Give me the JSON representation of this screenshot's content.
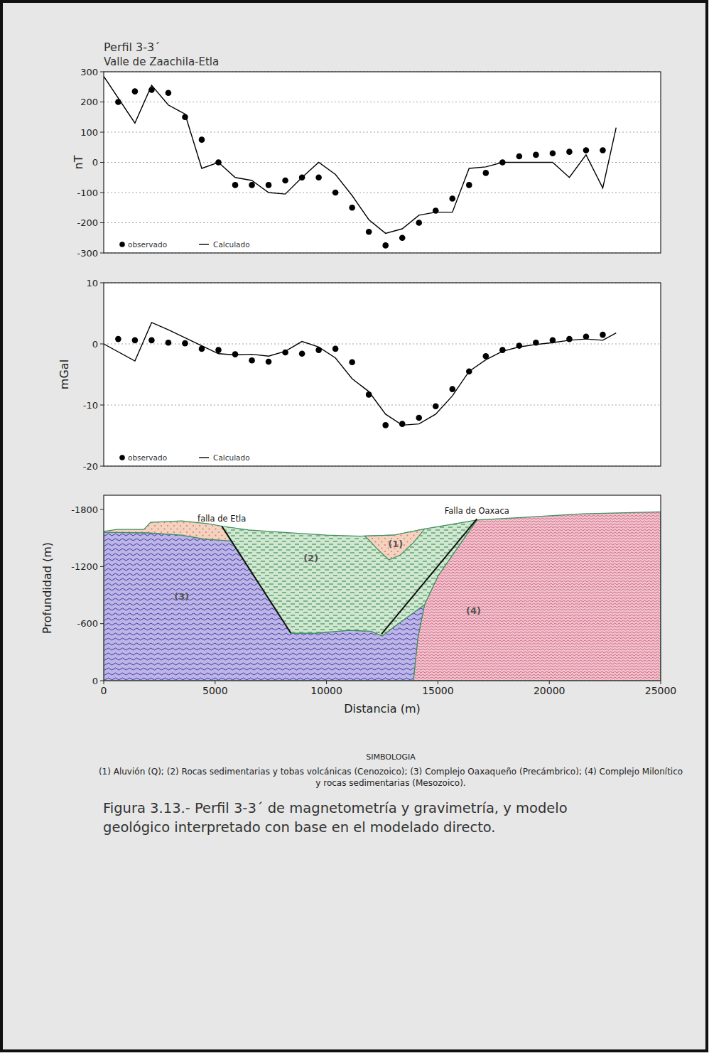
{
  "chart_data": [
    {
      "type": "line",
      "title": "Perfil 3-3´",
      "subtitle": "Valle de Zaachila-Etla",
      "y_label": "nT",
      "xlim": [
        0,
        25000
      ],
      "ylim": [
        -300,
        300
      ],
      "yticks": [
        -300,
        -200,
        -100,
        0,
        100,
        200,
        300
      ],
      "grid": true,
      "tick_labels": "y",
      "legend": "lower left",
      "series": [
        {
          "name": "observado",
          "type": "scatter",
          "marker": "circle",
          "color": "#000000",
          "x": [
            650,
            1400,
            2150,
            2900,
            3650,
            4400,
            5150,
            5900,
            6650,
            7400,
            8150,
            8900,
            9650,
            10400,
            11150,
            11900,
            12650,
            13400,
            14150,
            14900,
            15650,
            16400,
            17150,
            17900,
            18650,
            19400,
            20150,
            20900,
            21650,
            22400
          ],
          "values": [
            200,
            235,
            240,
            230,
            150,
            75,
            0,
            -75,
            -75,
            -75,
            -60,
            -50,
            -50,
            -100,
            -150,
            -230,
            -275,
            -250,
            -200,
            -160,
            -120,
            -75,
            -35,
            0,
            20,
            25,
            30,
            35,
            40,
            40
          ]
        },
        {
          "name": "Calculado",
          "type": "line",
          "line_style": "solid",
          "color": "#000000",
          "x": [
            0,
            1400,
            2150,
            2900,
            3650,
            4400,
            5150,
            5900,
            6650,
            7400,
            8150,
            8900,
            9650,
            10400,
            11150,
            11900,
            12650,
            13400,
            14150,
            14900,
            15650,
            16400,
            17150,
            17900,
            18650,
            19400,
            20150,
            20900,
            21650,
            22400,
            23000
          ],
          "values": [
            285,
            130,
            255,
            190,
            160,
            -20,
            0,
            -50,
            -60,
            -100,
            -105,
            -50,
            0,
            -40,
            -110,
            -190,
            -235,
            -220,
            -175,
            -165,
            -165,
            -20,
            -15,
            0,
            0,
            0,
            0,
            -50,
            25,
            -85,
            115
          ]
        }
      ]
    },
    {
      "type": "line",
      "y_label": "mGal",
      "xlim": [
        0,
        25000
      ],
      "ylim": [
        -20,
        10
      ],
      "yticks": [
        -20,
        -10,
        0,
        10
      ],
      "grid": true,
      "tick_labels": "y",
      "legend": "lower left",
      "series": [
        {
          "name": "observado",
          "type": "scatter",
          "marker": "circle",
          "color": "#000000",
          "x": [
            650,
            1400,
            2150,
            2900,
            3650,
            4400,
            5150,
            5900,
            6650,
            7400,
            8150,
            8900,
            9650,
            10400,
            11150,
            11900,
            12650,
            13400,
            14150,
            14900,
            15650,
            16400,
            17150,
            17900,
            18650,
            19400,
            20150,
            20900,
            21650,
            22400
          ],
          "values": [
            0.8,
            0.6,
            0.6,
            0.2,
            0.1,
            -0.8,
            -1.0,
            -1.7,
            -2.7,
            -2.9,
            -1.4,
            -1.6,
            -1.0,
            -0.8,
            -3.0,
            -8.3,
            -13.3,
            -13.1,
            -12.1,
            -10.2,
            -7.4,
            -4.5,
            -2.0,
            -1.0,
            -0.3,
            0.2,
            0.6,
            0.8,
            1.2,
            1.5
          ]
        },
        {
          "name": "Calculado",
          "type": "line",
          "line_style": "solid",
          "color": "#000000",
          "x": [
            0,
            1400,
            2150,
            2900,
            3650,
            4400,
            5150,
            5900,
            6650,
            7400,
            8150,
            8900,
            9650,
            10400,
            11150,
            11900,
            12650,
            13400,
            14150,
            14900,
            15650,
            16400,
            17150,
            17900,
            18650,
            19400,
            20150,
            20900,
            21650,
            22400,
            23000
          ],
          "values": [
            0,
            -2.8,
            3.5,
            2.3,
            1.0,
            -0.3,
            -1.6,
            -1.8,
            -1.7,
            -2.0,
            -1.2,
            0.4,
            -0.5,
            -2.3,
            -5.7,
            -7.8,
            -11.5,
            -13.3,
            -13.1,
            -11.5,
            -8.5,
            -4.5,
            -2.6,
            -1.2,
            -0.5,
            -0.1,
            0.2,
            0.6,
            0.8,
            0.6,
            1.8
          ]
        }
      ]
    },
    {
      "type": "section",
      "x_label": "Distancia (m)",
      "y_label": "Profundidad (m)",
      "xlim": [
        0,
        25000
      ],
      "ylim": [
        0,
        -1950
      ],
      "xticks": [
        0,
        5000,
        10000,
        15000,
        20000,
        25000
      ],
      "yticks": [
        0,
        -600,
        -1200,
        -1800
      ],
      "grid": false,
      "tick_labels": true,
      "units": [
        {
          "label": "(1)",
          "description": "Aluvión (Q);",
          "color": "#f3d2c0",
          "label_at": [
            13100,
            -1440
          ],
          "polygons": [
            [
              [
                0,
                -1570
              ],
              [
                600,
                -1590
              ],
              [
                1800,
                -1590
              ],
              [
                2100,
                -1665
              ],
              [
                3500,
                -1680
              ],
              [
                4700,
                -1650
              ],
              [
                5300,
                -1625
              ],
              [
                5700,
                -1470
              ],
              [
                4500,
                -1490
              ],
              [
                3500,
                -1530
              ],
              [
                2000,
                -1555
              ],
              [
                0,
                -1560
              ]
            ],
            [
              [
                11700,
                -1522
              ],
              [
                13000,
                -1530
              ],
              [
                14400,
                -1595
              ],
              [
                13900,
                -1450
              ],
              [
                13300,
                -1320
              ],
              [
                12800,
                -1270
              ],
              [
                12300,
                -1380
              ],
              [
                11900,
                -1480
              ]
            ]
          ]
        },
        {
          "label": "(2)",
          "description": "Rocas sedimentarias y tobas volcánicas (Cenozoico);",
          "color": "#cfe8cf",
          "label_at": [
            9300,
            -1290
          ],
          "polygons": [
            [
              [
                5300,
                -1625
              ],
              [
                6500,
                -1585
              ],
              [
                8000,
                -1560
              ],
              [
                10000,
                -1530
              ],
              [
                11500,
                -1520
              ],
              [
                13000,
                -1530
              ],
              [
                14500,
                -1600
              ],
              [
                16750,
                -1690
              ],
              [
                15000,
                -1100
              ],
              [
                14400,
                -800
              ],
              [
                13000,
                -560
              ],
              [
                12500,
                -470
              ],
              [
                12000,
                -520
              ],
              [
                11000,
                -530
              ],
              [
                9500,
                -500
              ],
              [
                8400,
                -500
              ]
            ]
          ]
        },
        {
          "label": "(3)",
          "description": "Complejo Oaxaqueño (Precámbrico);",
          "color": "#bdb5e6",
          "label_at": [
            3500,
            -890
          ],
          "polygons": [
            [
              [
                0,
                0
              ],
              [
                0,
                -1560
              ],
              [
                2000,
                -1555
              ],
              [
                3500,
                -1530
              ],
              [
                4500,
                -1490
              ],
              [
                5700,
                -1470
              ],
              [
                8400,
                -500
              ],
              [
                9500,
                -500
              ],
              [
                11000,
                -530
              ],
              [
                12000,
                -520
              ],
              [
                12500,
                -470
              ],
              [
                13000,
                -560
              ],
              [
                14400,
                -800
              ],
              [
                14100,
                -450
              ],
              [
                13900,
                0
              ]
            ]
          ]
        },
        {
          "label": "(4)",
          "description": "Complejo Milonítico y rocas sedimentarias (Mesozoico).",
          "color": "#f2c4cf",
          "label_at": [
            16600,
            -740
          ],
          "polygons": [
            [
              [
                13900,
                0
              ],
              [
                14100,
                -450
              ],
              [
                14400,
                -800
              ],
              [
                15000,
                -1100
              ],
              [
                16750,
                -1690
              ],
              [
                19000,
                -1720
              ],
              [
                21500,
                -1755
              ],
              [
                25000,
                -1775
              ],
              [
                25000,
                0
              ]
            ]
          ]
        }
      ],
      "faults": [
        {
          "name": "falla de Etla",
          "points": [
            [
              5300,
              -1625
            ],
            [
              8400,
              -500
            ]
          ]
        },
        {
          "name": "Falla de Oaxaca",
          "points": [
            [
              12470,
              -490
            ],
            [
              16750,
              -1700
            ]
          ]
        }
      ]
    }
  ],
  "symbology_title": "SIMBOLOGIA",
  "caption": "Figura 3.13.- Perfil 3-3´ de magnetometría y gravimetría, y modelo geológico interpretado con base en el modelado directo."
}
